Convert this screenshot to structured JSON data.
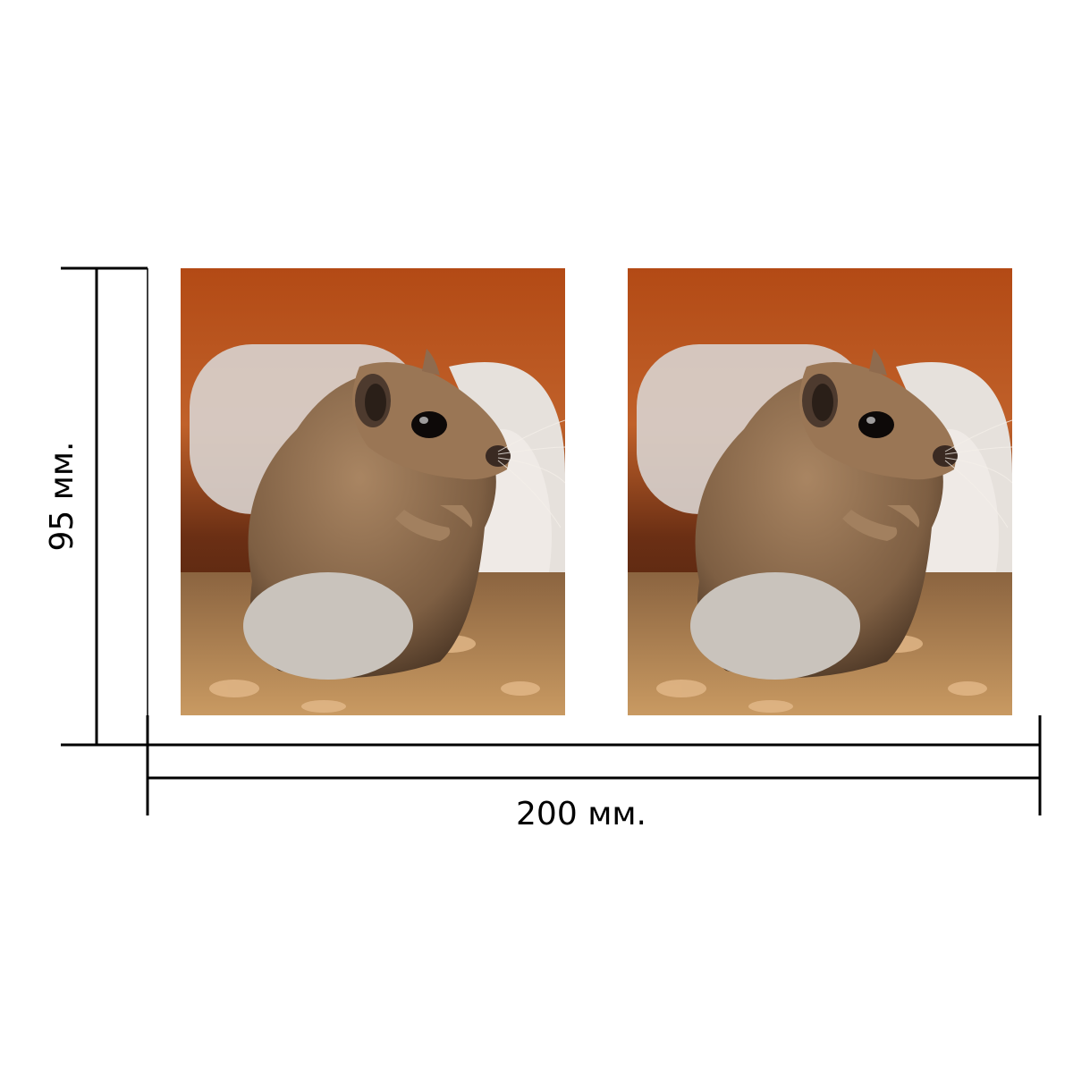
{
  "dimensions": {
    "width_label": "200 мм.",
    "height_label": "95 мм."
  },
  "photos": [
    {
      "subject": "gerbin"
    },
    {
      "subject": "gerbil"
    }
  ],
  "colors": {
    "line": "#000000",
    "background": "#ffffff",
    "photo_backdrop": "#b24a16",
    "fur": "#8b6a4c",
    "belly": "#cfc9c2",
    "bedding": "#a4784a",
    "tube": "#dedad6"
  }
}
